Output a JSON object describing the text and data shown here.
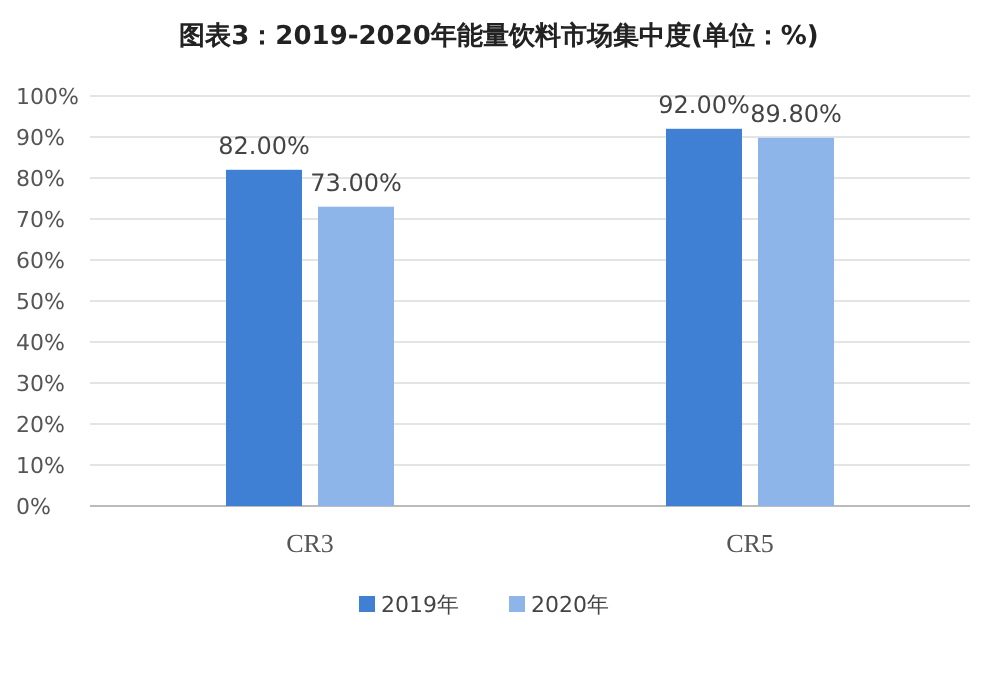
{
  "chart_data": {
    "type": "bar",
    "title": "图表3：2019-2020年能量饮料市场集中度(单位：%)",
    "categories": [
      "CR3",
      "CR5"
    ],
    "series": [
      {
        "name": "2019年",
        "color": "#3f7fd4",
        "values": [
          82,
          92
        ],
        "value_labels": [
          "82.00%",
          "92.00%"
        ]
      },
      {
        "name": "2020年",
        "color": "#8db5ea",
        "values": [
          73,
          89.8
        ],
        "value_labels": [
          "73.00%",
          "89.80%"
        ]
      }
    ],
    "ylim": [
      0,
      100
    ],
    "yticks": [
      {
        "value": 0,
        "label": "0%"
      },
      {
        "value": 10,
        "label": "10%"
      },
      {
        "value": 20,
        "label": "20%"
      },
      {
        "value": 30,
        "label": "30%"
      },
      {
        "value": 40,
        "label": "40%"
      },
      {
        "value": 50,
        "label": "50%"
      },
      {
        "value": 60,
        "label": "60%"
      },
      {
        "value": 70,
        "label": "70%"
      },
      {
        "value": 80,
        "label": "80%"
      },
      {
        "value": 90,
        "label": "90%"
      },
      {
        "value": 100,
        "label": "100%"
      }
    ],
    "grid": "y",
    "legend": "bottom"
  }
}
